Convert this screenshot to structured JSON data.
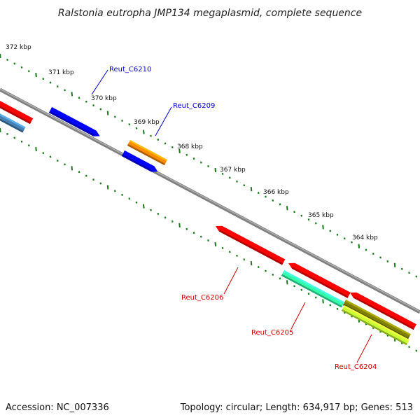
{
  "title": "Ralstonia eutropha JMP134 megaplasmid, complete sequence",
  "footer": {
    "accession": "Accession: NC_007336",
    "summary": "Topology: circular; Length: 634,917 bp; Genes: 513"
  },
  "kbp_ticks": [
    "372 kbp",
    "371 kbp",
    "370 kbp",
    "369 kbp",
    "368 kbp",
    "367 kbp",
    "366 kbp",
    "365 kbp",
    "364 kbp"
  ],
  "gene_labels": [
    {
      "name": "Reut_C6210",
      "color": "#0000cc"
    },
    {
      "name": "Reut_C6209",
      "color": "#0000cc"
    },
    {
      "name": "Reut_C6206",
      "color": "#cc0000"
    },
    {
      "name": "Reut_C6205",
      "color": "#cc0000"
    },
    {
      "name": "Reut_C6204",
      "color": "#cc0000"
    }
  ],
  "colors": {
    "backbone": "#808080",
    "tick": "#1a7a1a",
    "red": "#ff0000",
    "blue": "#0000ff",
    "steel": "#4682b4",
    "orange": "#ff8c00",
    "aqua": "#33ffaa",
    "olive": "#808000",
    "lime": "#ccff33"
  }
}
